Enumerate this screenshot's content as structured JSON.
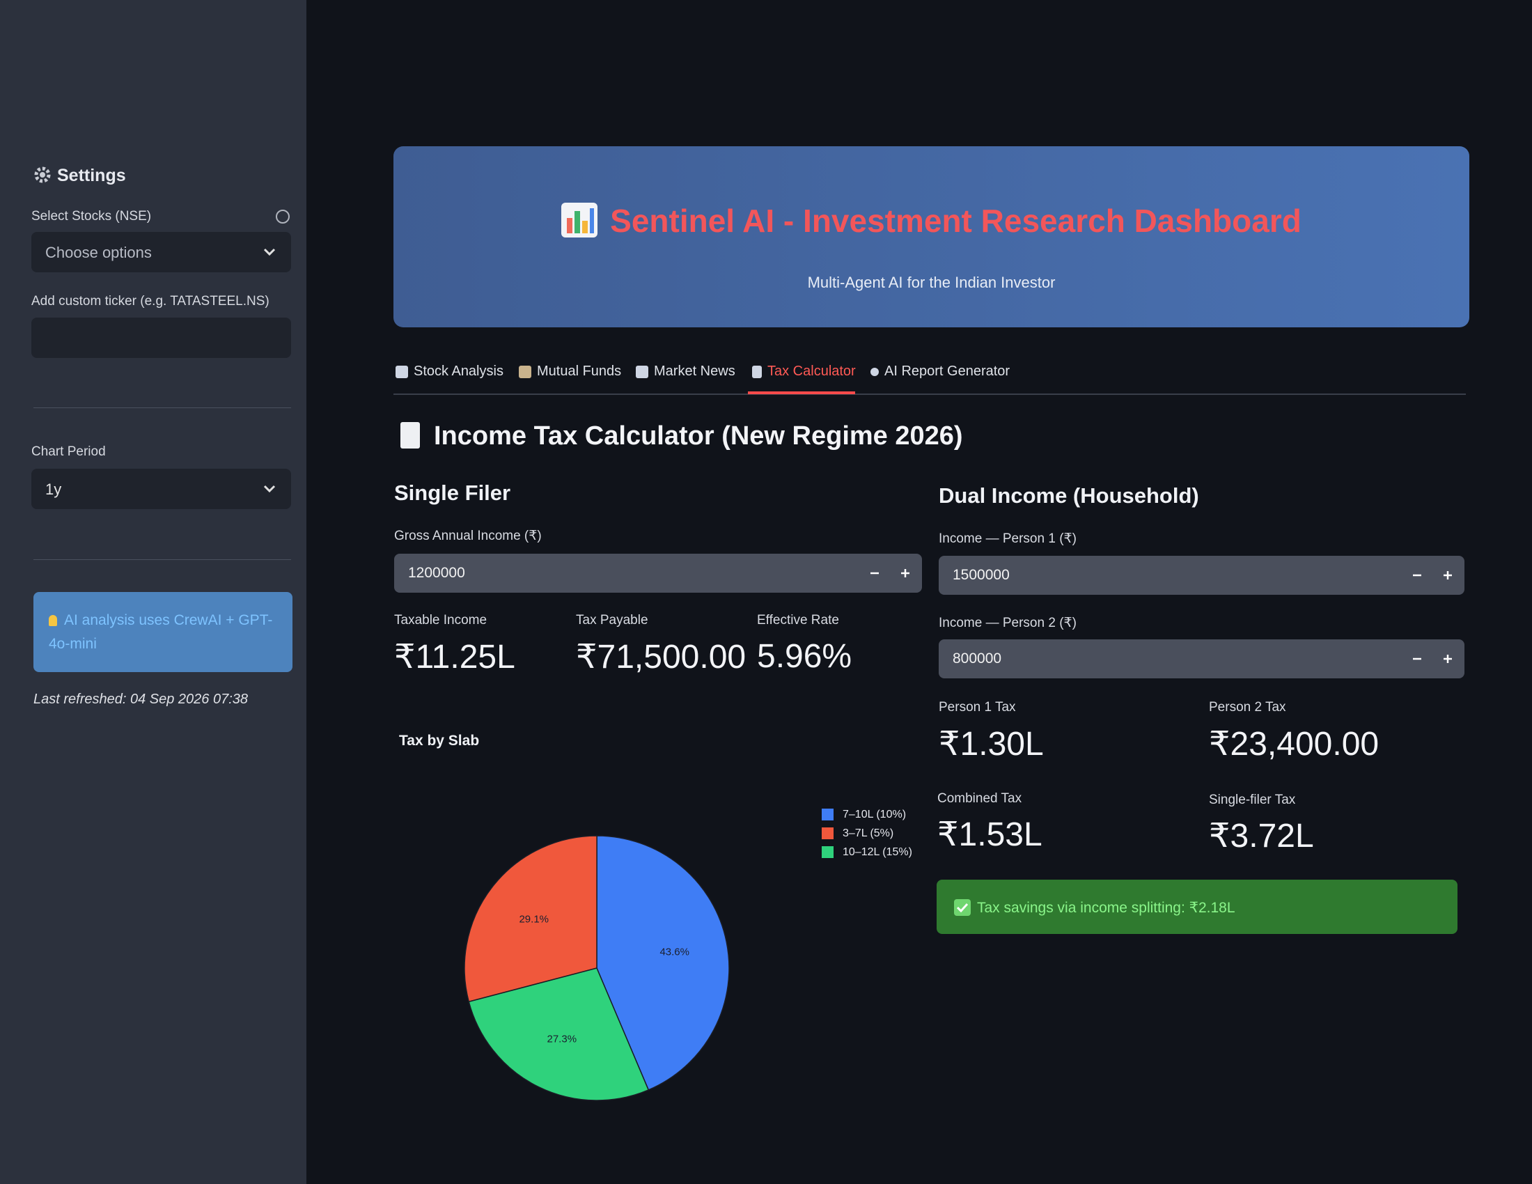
{
  "sidebar": {
    "title": "Settings",
    "select_stocks_label": "Select Stocks (NSE)",
    "select_stocks_placeholder": "Choose options",
    "custom_ticker_label": "Add custom ticker (e.g. TATASTEEL.NS)",
    "chart_period_label": "Chart Period",
    "chart_period_value": "1y",
    "info": "AI analysis uses CrewAI + GPT-4o-mini",
    "last_refreshed": "Last refreshed: 04 Sep 2026 07:38"
  },
  "header": {
    "title": "Sentinel AI - Investment Research Dashboard",
    "subtitle": "Multi-Agent AI for the Indian Investor"
  },
  "tabs": [
    "Stock Analysis",
    "Mutual Funds",
    "Market News",
    "Tax Calculator",
    "AI Report Generator"
  ],
  "calculator": {
    "title": "Income Tax Calculator (New Regime 2026)",
    "single": {
      "title": "Single Filer",
      "income_label": "Gross Annual Income (₹)",
      "income_value": "1200000",
      "metrics": [
        {
          "label": "Taxable Income",
          "value": "₹11.25L"
        },
        {
          "label": "Tax Payable",
          "value": "₹71,500.00"
        },
        {
          "label": "Effective Rate",
          "value": "5.96%"
        }
      ]
    },
    "dual": {
      "title": "Dual Income (Household)",
      "person1_label": "Income — Person 1 (₹)",
      "person1_value": "1500000",
      "person2_label": "Income — Person 2 (₹)",
      "person2_value": "800000",
      "metrics": [
        {
          "label": "Person 1 Tax",
          "value": "₹1.30L"
        },
        {
          "label": "Person 2 Tax",
          "value": "₹23,400.00"
        },
        {
          "label": "Combined Tax",
          "value": "₹1.53L"
        },
        {
          "label": "Single-filer Tax",
          "value": "₹3.72L"
        }
      ],
      "success": "Tax savings via income splitting: ₹2.18L"
    }
  },
  "chart_data": {
    "type": "pie",
    "title": "Tax by Slab",
    "categories": [
      "7–10L (10%)",
      "3–7L (5%)",
      "10–12L (15%)"
    ],
    "values": [
      43.6,
      29.1,
      27.3
    ],
    "value_labels": [
      "43.6%",
      "29.1%",
      "27.3%"
    ],
    "colors": [
      "#3f7df5",
      "#f0583c",
      "#2fd27c"
    ]
  }
}
